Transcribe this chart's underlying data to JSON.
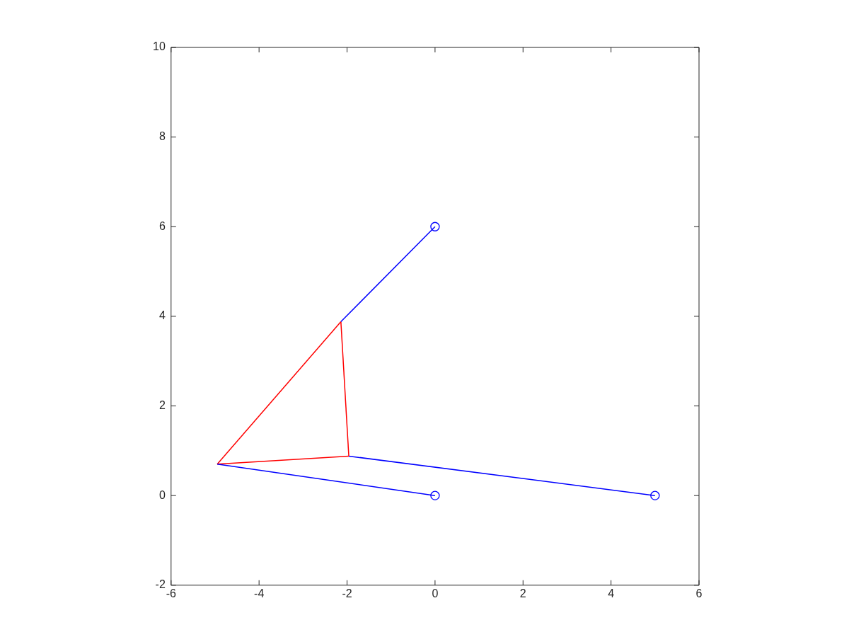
{
  "chart_data": {
    "type": "line",
    "xlim": [
      -6,
      6
    ],
    "ylim": [
      -2,
      10
    ],
    "xticks": [
      -6,
      -4,
      -2,
      0,
      2,
      4,
      6
    ],
    "yticks": [
      -2,
      0,
      2,
      4,
      6,
      8,
      10
    ],
    "grid": false,
    "legend": false,
    "series": [
      {
        "color": "#0000ff",
        "marker": "none",
        "x": [
          0,
          -2.14
        ],
        "values": [
          6,
          3.88
        ]
      },
      {
        "color": "#0000ff",
        "marker": "none",
        "x": [
          0,
          -4.95
        ],
        "values": [
          0,
          0.7
        ]
      },
      {
        "color": "#0000ff",
        "marker": "none",
        "x": [
          5,
          -1.96
        ],
        "values": [
          0,
          0.88
        ]
      },
      {
        "color": "#ff0000",
        "marker": "none",
        "x": [
          -4.95,
          -2.14
        ],
        "values": [
          0.7,
          3.88
        ]
      },
      {
        "color": "#ff0000",
        "marker": "none",
        "x": [
          -2.14,
          -1.96
        ],
        "values": [
          3.88,
          0.88
        ]
      },
      {
        "color": "#ff0000",
        "marker": "none",
        "x": [
          -4.95,
          -1.96
        ],
        "values": [
          0.7,
          0.88
        ]
      },
      {
        "type": "scatter",
        "color": "#0000ff",
        "marker": "circle",
        "x": [
          0,
          0,
          5
        ],
        "values": [
          6,
          0,
          0
        ]
      }
    ]
  }
}
